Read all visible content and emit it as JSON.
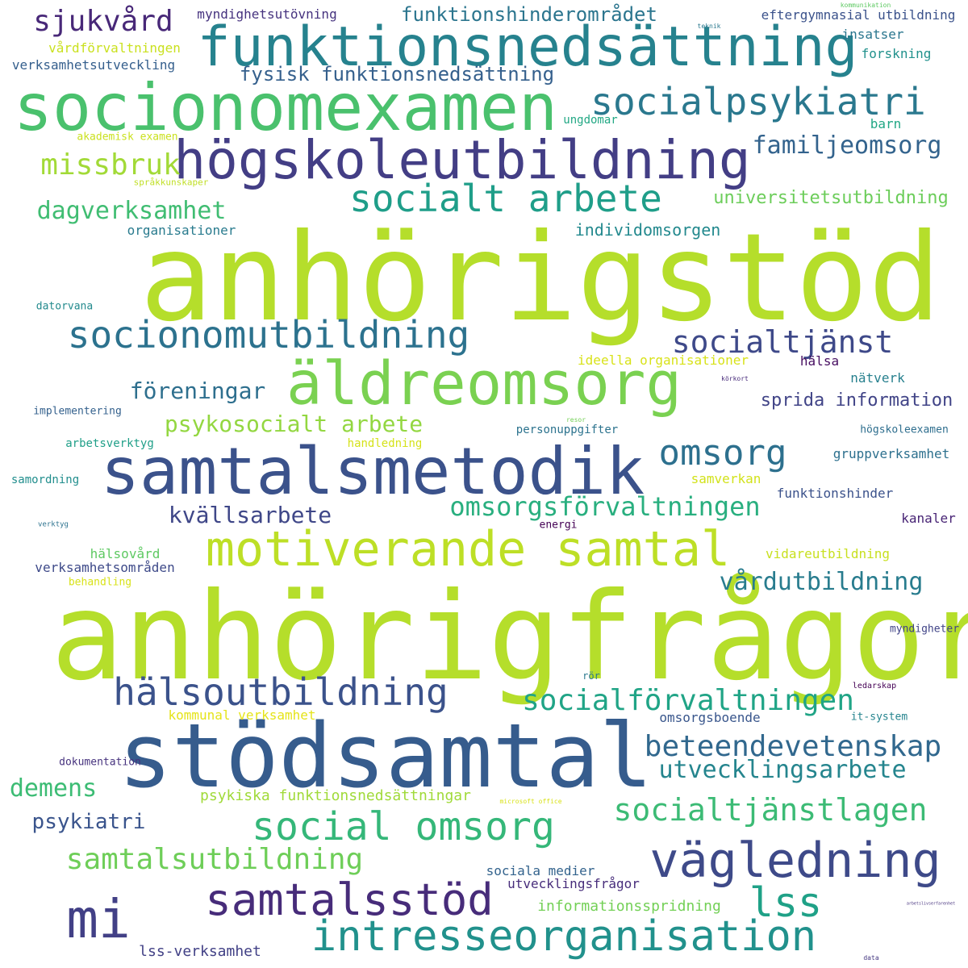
{
  "cloud": {
    "words": [
      {
        "text": "anhörigstöd",
        "color": "#b5de2b"
      },
      {
        "text": "anhörigfrågor",
        "color": "#b5de2b"
      },
      {
        "text": "stödsamtal",
        "color": "#365c8d"
      },
      {
        "text": "socionomexamen",
        "color": "#4ac16d"
      },
      {
        "text": "samtalsmetodik",
        "color": "#3b528b"
      },
      {
        "text": "funktionsnedsättning",
        "color": "#26828e"
      },
      {
        "text": "högskoleutbildning",
        "color": "#433e85"
      },
      {
        "text": "äldreomsorg",
        "color": "#7ad151"
      },
      {
        "text": "motiverande samtal",
        "color": "#bddf26"
      },
      {
        "text": "vägledning",
        "color": "#3e4a89"
      },
      {
        "text": "intresseorganisation",
        "color": "#21918c"
      },
      {
        "text": "samtalsstöd",
        "color": "#472c7a"
      },
      {
        "text": "socionomutbildning",
        "color": "#2c728e"
      },
      {
        "text": "hälsoutbildning",
        "color": "#3b528b"
      },
      {
        "text": "social omsorg",
        "color": "#35b779"
      },
      {
        "text": "mi",
        "color": "#424086"
      },
      {
        "text": "socialt arbete",
        "color": "#1f9e89"
      },
      {
        "text": "socialpsykiatri",
        "color": "#2a788e"
      },
      {
        "text": "socialtjänstlagen",
        "color": "#3cbb75"
      },
      {
        "text": "socialförvaltningen",
        "color": "#20a486"
      },
      {
        "text": "beteendevetenskap",
        "color": "#31688e"
      },
      {
        "text": "samtalsutbildning",
        "color": "#6ece58"
      },
      {
        "text": "lss",
        "color": "#1fa187"
      },
      {
        "text": "omsorg",
        "color": "#2d708e"
      },
      {
        "text": "socialtjänst",
        "color": "#3e4989"
      },
      {
        "text": "omsorgsförvaltningen",
        "color": "#29af7f"
      },
      {
        "text": "sjukvård",
        "color": "#482878"
      },
      {
        "text": "missbruk",
        "color": "#a2da37"
      },
      {
        "text": "familjeomsorg",
        "color": "#33638d"
      },
      {
        "text": "dagverksamhet",
        "color": "#40bd72"
      },
      {
        "text": "utvecklingsarbete",
        "color": "#25858e"
      },
      {
        "text": "vårdutbildning",
        "color": "#287c8e"
      },
      {
        "text": "psykosocialt arbete",
        "color": "#93d741"
      },
      {
        "text": "föreningar",
        "color": "#2e6f8e"
      },
      {
        "text": "kvällsarbete",
        "color": "#3f4788"
      },
      {
        "text": "demens",
        "color": "#3cbc74"
      },
      {
        "text": "psykiatri",
        "color": "#3a548c"
      },
      {
        "text": "funktionshinderområdet",
        "color": "#2b758e"
      },
      {
        "text": "fysisk funktionsnedsättning",
        "color": "#35608d"
      },
      {
        "text": "sprida information",
        "color": "#414487"
      },
      {
        "text": "universitetsutbildning",
        "color": "#6ccd5a"
      },
      {
        "text": "individomsorgen",
        "color": "#23898e"
      },
      {
        "text": "informationsspridning",
        "color": "#73d056"
      },
      {
        "text": "lss-verksamhet",
        "color": "#424186"
      },
      {
        "text": "psykiska funktionsnedsättningar",
        "color": "#a0da39"
      },
      {
        "text": "sociala medier",
        "color": "#33638d"
      },
      {
        "text": "utvecklingsfrågor",
        "color": "#472d7b"
      },
      {
        "text": "myndighetsutövning",
        "color": "#46337f"
      },
      {
        "text": "eftergymnasial utbildning",
        "color": "#3b528b"
      },
      {
        "text": "insatser",
        "color": "#2a768e"
      },
      {
        "text": "forskning",
        "color": "#21918c"
      },
      {
        "text": "vårdförvaltningen",
        "color": "#cae11f"
      },
      {
        "text": "verksamhetsutveckling",
        "color": "#355f8d"
      },
      {
        "text": "barn",
        "color": "#22a785"
      },
      {
        "text": "ungdomar",
        "color": "#22a884"
      },
      {
        "text": "akademisk examen",
        "color": "#cae11f"
      },
      {
        "text": "språkkunskaper",
        "color": "#c0df25"
      },
      {
        "text": "organisationer",
        "color": "#297b8e"
      },
      {
        "text": "datorvana",
        "color": "#238a8d"
      },
      {
        "text": "ideella organisationer",
        "color": "#d8e219"
      },
      {
        "text": "hälsa",
        "color": "#470e61"
      },
      {
        "text": "nätverk",
        "color": "#27808e"
      },
      {
        "text": "implementering",
        "color": "#34618d"
      },
      {
        "text": "personuppgifter",
        "color": "#2c738e"
      },
      {
        "text": "högskoleexamen",
        "color": "#2e6e8e"
      },
      {
        "text": "arbetsverktyg",
        "color": "#1f9f88"
      },
      {
        "text": "handledning",
        "color": "#d5e21a"
      },
      {
        "text": "gruppverksamhet",
        "color": "#2d708e"
      },
      {
        "text": "samverkan",
        "color": "#d2e21b"
      },
      {
        "text": "samordning",
        "color": "#218e8d"
      },
      {
        "text": "funktionshinder",
        "color": "#3b528b"
      },
      {
        "text": "kanaler",
        "color": "#482475"
      },
      {
        "text": "energi",
        "color": "#440154"
      },
      {
        "text": "hälsovård",
        "color": "#5ec962"
      },
      {
        "text": "vidareutbildning",
        "color": "#c8e020"
      },
      {
        "text": "verksamhetsområden",
        "color": "#3e4a89"
      },
      {
        "text": "behandling",
        "color": "#d8e219"
      },
      {
        "text": "myndigheter",
        "color": "#414487"
      },
      {
        "text": "kommunal verksamhet",
        "color": "#e5e419"
      },
      {
        "text": "omsorgsboende",
        "color": "#39568c"
      },
      {
        "text": "it-system",
        "color": "#25848e"
      },
      {
        "text": "dokumentation",
        "color": "#46327e"
      },
      {
        "text": "ledarskap",
        "color": "#440154"
      },
      {
        "text": "rör",
        "color": "#2a788e"
      },
      {
        "text": "verktyg",
        "color": "#2c728e"
      },
      {
        "text": "teknik",
        "color": "#2a788e"
      },
      {
        "text": "kommunikation",
        "color": "#5ec962"
      },
      {
        "text": "resor",
        "color": "#73d056"
      },
      {
        "text": "körkort",
        "color": "#472a7a"
      },
      {
        "text": "microsoft office",
        "color": "#d8e219"
      },
      {
        "text": "arbetslivserfarenhet",
        "color": "#46327e"
      },
      {
        "text": "data",
        "color": "#453882"
      }
    ]
  }
}
